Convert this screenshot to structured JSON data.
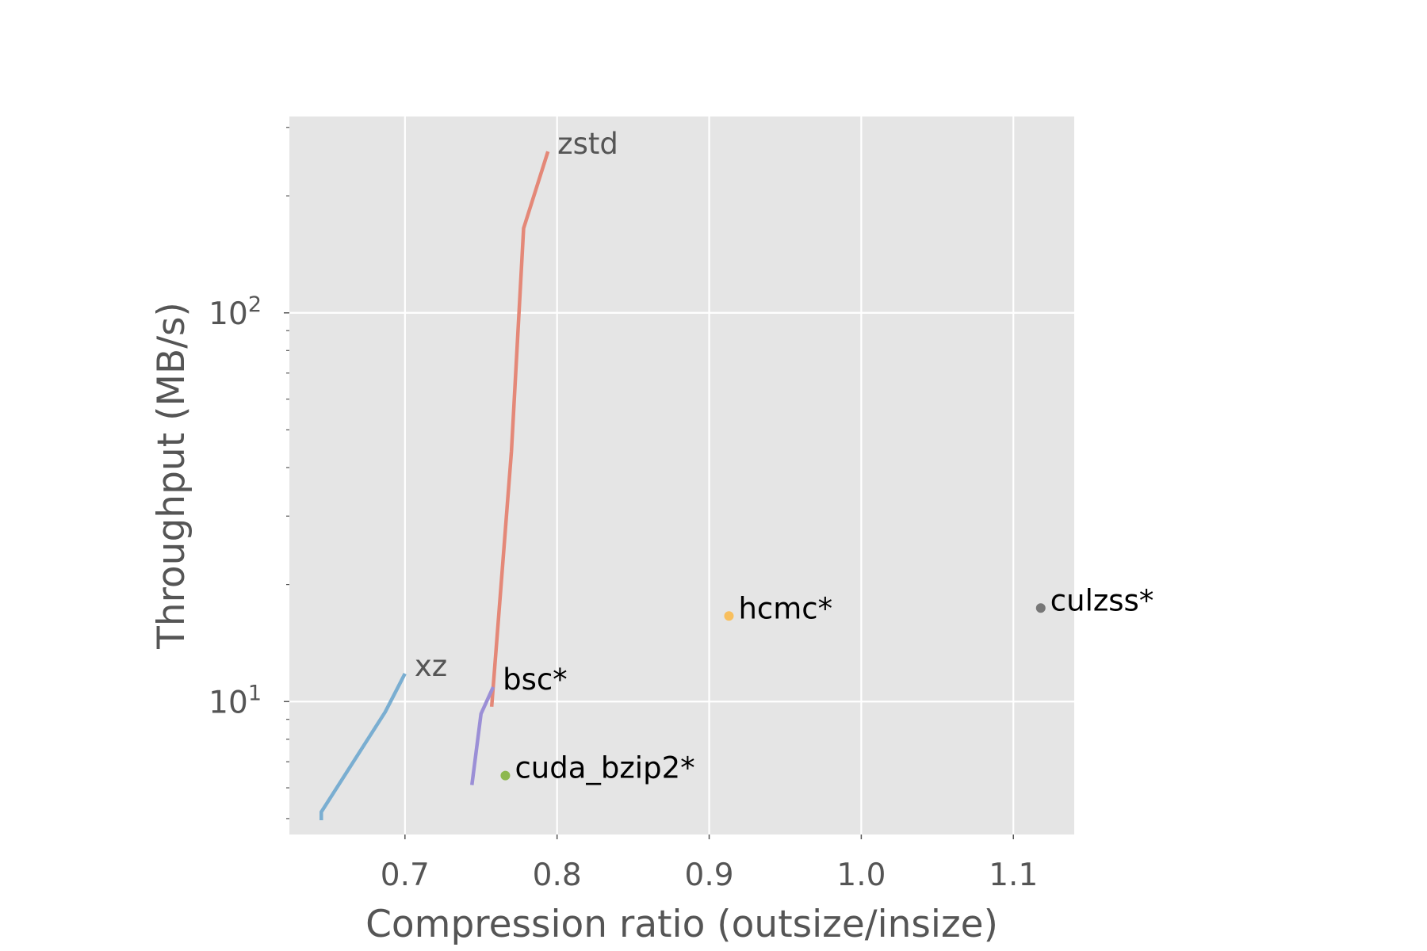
{
  "chart_data": {
    "type": "line",
    "xlabel": "Compression ratio (outsize/insize)",
    "ylabel": "Throughput (MB/s)",
    "xlim": [
      0.624,
      1.14
    ],
    "ylim": [
      4.55,
      320
    ],
    "y_scale": "log",
    "grid": true,
    "x_ticks": [
      {
        "value": 0.7,
        "label": "0.7"
      },
      {
        "value": 0.8,
        "label": "0.8"
      },
      {
        "value": 0.9,
        "label": "0.9"
      },
      {
        "value": 1.0,
        "label": "1.0"
      },
      {
        "value": 1.1,
        "label": "1.1"
      }
    ],
    "y_ticks": [
      {
        "value": 10,
        "base": "10",
        "exp": "1"
      },
      {
        "value": 100,
        "base": "10",
        "exp": "2"
      }
    ],
    "series": [
      {
        "name": "xz",
        "kind": "line",
        "color": "#7aaed1",
        "label_color": "#555555",
        "points": [
          [
            0.645,
            4.95
          ],
          [
            0.645,
            5.2
          ],
          [
            0.687,
            9.4
          ],
          [
            0.7,
            11.8
          ]
        ]
      },
      {
        "name": "zstd",
        "kind": "line",
        "color": "#e48878",
        "label_color": "#555555",
        "points": [
          [
            0.757,
            9.7
          ],
          [
            0.77,
            44
          ],
          [
            0.778,
            165
          ],
          [
            0.794,
            260
          ]
        ]
      },
      {
        "name": "bsc*",
        "kind": "line",
        "color": "#9b8fd6",
        "label_color": "#000000",
        "points": [
          [
            0.744,
            6.1
          ],
          [
            0.75,
            9.3
          ],
          [
            0.758,
            10.9
          ]
        ]
      },
      {
        "name": "cuda_bzip2*",
        "kind": "point",
        "color": "#8db84f",
        "label_color": "#000000",
        "points": [
          [
            0.766,
            6.45
          ]
        ]
      },
      {
        "name": "hcmc*",
        "kind": "point",
        "color": "#f8bf5e",
        "label_color": "#000000",
        "points": [
          [
            0.913,
            16.6
          ]
        ]
      },
      {
        "name": "culzss*",
        "kind": "point",
        "color": "#777777",
        "label_color": "#000000",
        "points": [
          [
            1.118,
            17.4
          ]
        ]
      }
    ]
  }
}
